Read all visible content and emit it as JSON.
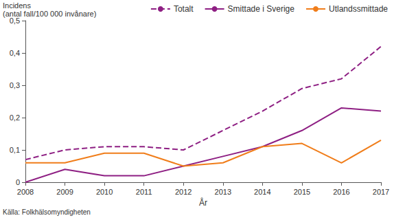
{
  "chart_data": {
    "type": "line",
    "ylabel": "Incidens\n(antal fall/100 000 invånare)",
    "xlabel": "År",
    "source": "Källa: Folkhälsomyndigheten",
    "categories": [
      "2008",
      "2009",
      "2010",
      "2011",
      "2012",
      "2013",
      "2014",
      "2015",
      "2016",
      "2017"
    ],
    "series": [
      {
        "name": "Totalt",
        "color": "#8e1f83",
        "line_style": "dashed",
        "marker": "none",
        "values": [
          0.07,
          0.1,
          0.11,
          0.11,
          0.1,
          0.16,
          0.22,
          0.29,
          0.32,
          0.42
        ]
      },
      {
        "name": "Smittade i Sverige",
        "color": "#8e1f83",
        "line_style": "solid",
        "marker": "none",
        "values": [
          0.0,
          0.04,
          0.02,
          0.02,
          0.05,
          0.08,
          0.11,
          0.16,
          0.23,
          0.22
        ]
      },
      {
        "name": "Utlandssmittade",
        "color": "#f07d1a",
        "line_style": "solid",
        "marker": "none",
        "values": [
          0.06,
          0.06,
          0.09,
          0.09,
          0.05,
          0.06,
          0.11,
          0.12,
          0.06,
          0.13
        ]
      }
    ],
    "ylim": [
      0,
      0.5
    ],
    "yticks": [
      0,
      {
        "value": 0.1,
        "label": "0,1"
      },
      {
        "value": 0.2,
        "label": "0,2"
      },
      {
        "value": 0.3,
        "label": "0,3"
      },
      {
        "value": 0.4,
        "label": "0,4"
      },
      {
        "value": 0.5,
        "label": "0,5"
      }
    ],
    "grid": false,
    "legend": "top-right"
  }
}
